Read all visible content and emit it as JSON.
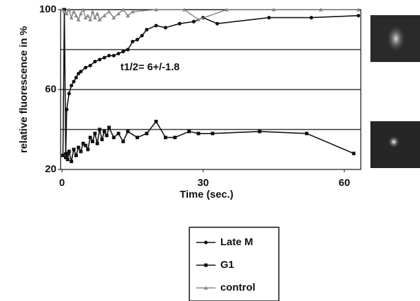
{
  "chart_data": {
    "type": "line",
    "annotation": "t1/2= 6+/-1.8",
    "x_label": "Time (sec.)",
    "y_label": "relative fluorescence in %",
    "xlim": [
      -0.3,
      63.5
    ],
    "ylim": [
      20,
      100
    ],
    "xticks": [
      0,
      30,
      60
    ],
    "yticks": [
      20,
      60,
      100
    ],
    "ygrid": [
      40,
      60,
      80,
      100
    ],
    "series": [
      {
        "name": "Late M",
        "color": "#111111",
        "marker": "circle",
        "x": [
          0.8,
          1,
          1.5,
          2,
          2.5,
          3,
          3.5,
          4,
          5,
          6,
          7,
          8,
          9,
          10,
          11,
          12,
          13,
          14,
          15,
          16,
          17,
          18,
          20,
          22,
          25,
          28,
          30,
          33,
          44,
          53,
          63
        ],
        "values": [
          28,
          50,
          58,
          62,
          64,
          66,
          68,
          69,
          71,
          72,
          74,
          75,
          76,
          77,
          77,
          78,
          79,
          80,
          84,
          85,
          87,
          90,
          92,
          91,
          93,
          94,
          96,
          93,
          96,
          96,
          97
        ]
      },
      {
        "name": "G1",
        "color": "#111111",
        "marker": "square",
        "x": [
          0.2,
          0.5,
          0.8,
          1,
          1.2,
          1.5,
          2,
          2.5,
          3,
          3.5,
          4,
          4.5,
          5,
          5.5,
          6,
          6.5,
          7,
          7.5,
          8,
          8.5,
          9,
          9.5,
          10,
          11,
          12,
          13,
          14,
          16,
          18,
          20,
          22,
          24,
          27,
          29,
          32,
          42,
          52,
          62
        ],
        "values": [
          27,
          100,
          26,
          28,
          25,
          29,
          24,
          30,
          27,
          31,
          29,
          33,
          32,
          30,
          36,
          34,
          38,
          33,
          40,
          35,
          39,
          37,
          41,
          36,
          38,
          34,
          39,
          36,
          38,
          44,
          36,
          36,
          39,
          38,
          38,
          39,
          38,
          28
        ]
      },
      {
        "name": "control",
        "color": "#8a8a8a",
        "marker": "triangle",
        "x": [
          0,
          0.5,
          1,
          1.5,
          2,
          2.5,
          3,
          3.5,
          4,
          4.5,
          5,
          5.5,
          6,
          6.5,
          7,
          7.5,
          8,
          9,
          10,
          11,
          12,
          13,
          14,
          15,
          20,
          26,
          29,
          35,
          45,
          55,
          63
        ],
        "values": [
          100,
          99,
          98,
          100,
          96,
          99,
          97,
          95,
          98,
          100,
          96,
          97,
          95,
          99,
          96,
          98,
          95,
          97,
          99,
          96,
          98,
          100,
          97,
          99,
          100,
          100,
          95,
          100,
          100,
          100,
          100
        ]
      }
    ]
  }
}
